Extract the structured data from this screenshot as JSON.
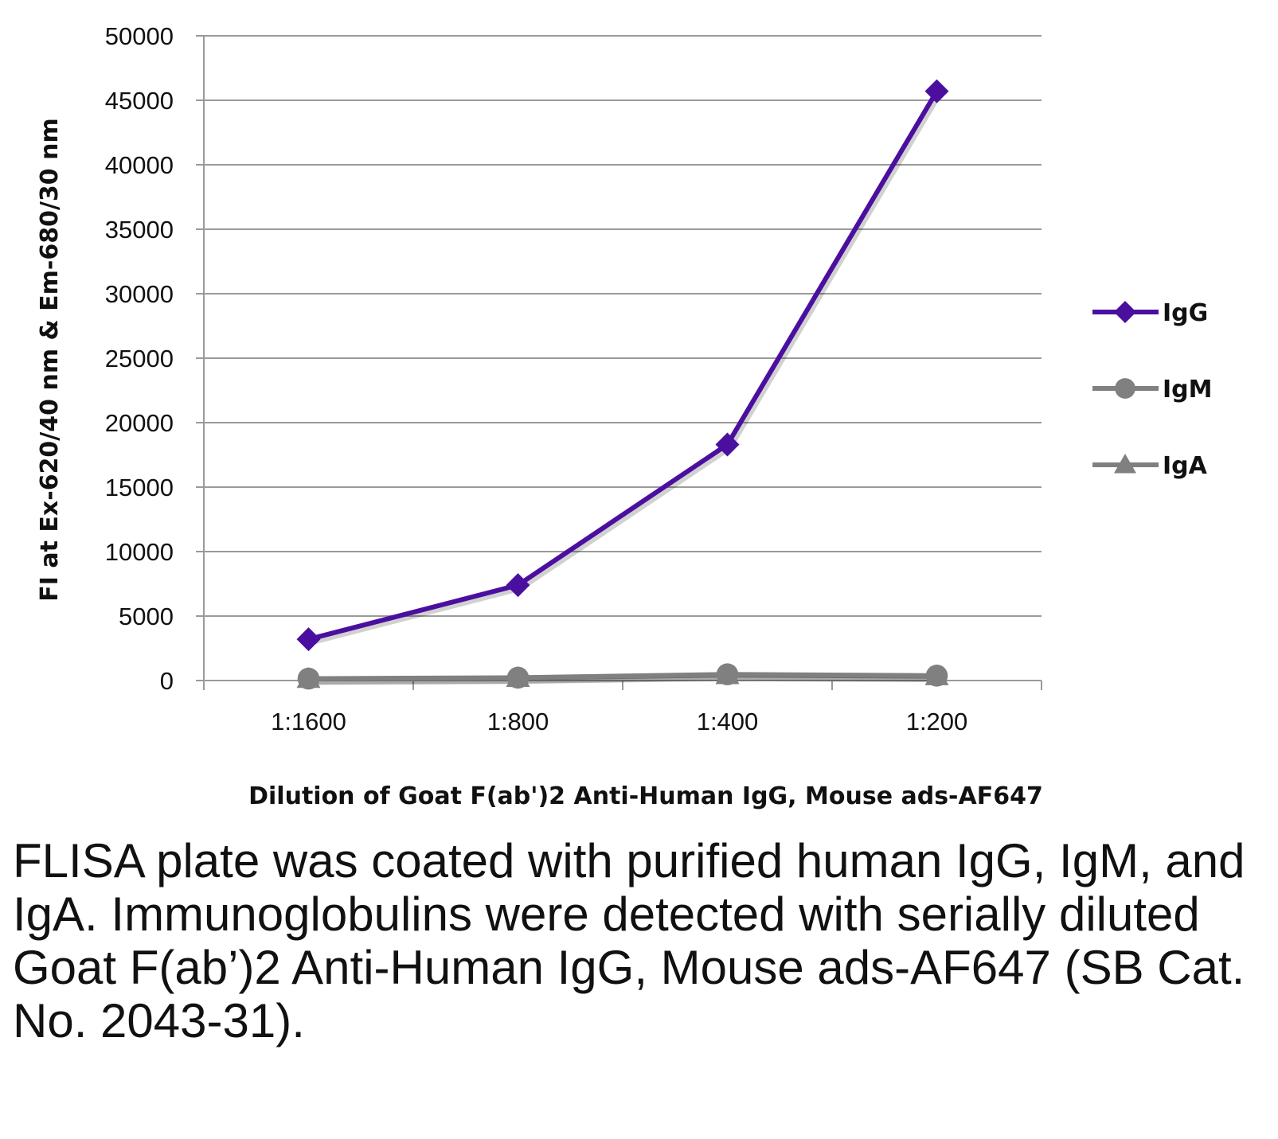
{
  "chart_data": {
    "type": "line",
    "categories": [
      "1:1600",
      "1:800",
      "1:400",
      "1:200"
    ],
    "series": [
      {
        "name": "IgG",
        "values": [
          3200,
          7400,
          18300,
          45700
        ],
        "color": "#4B0FA0",
        "marker": "diamond"
      },
      {
        "name": "IgM",
        "values": [
          150,
          220,
          480,
          380
        ],
        "color": "#808080",
        "marker": "circle"
      },
      {
        "name": "IgA",
        "values": [
          120,
          200,
          420,
          330
        ],
        "color": "#808080",
        "marker": "triangle"
      }
    ],
    "title": "",
    "xlabel": "Dilution of Goat F(ab')2 Anti-Human IgG, Mouse ads-AF647",
    "ylabel": "FI at Ex-620/40 nm & Em-680/30 nm",
    "ylim": [
      0,
      50000
    ],
    "yticks": [
      "0",
      "5000",
      "10000",
      "15000",
      "20000",
      "25000",
      "30000",
      "35000",
      "40000",
      "45000",
      "50000"
    ],
    "grid": true,
    "legend_position": "right"
  },
  "caption": "FLISA plate was coated with purified human IgG, IgM, and IgA.  Immunoglobulins were detected with serially diluted Goat F(ab’)2 Anti-Human IgG, Mouse ads-AF647 (SB Cat. No. 2043-31)."
}
